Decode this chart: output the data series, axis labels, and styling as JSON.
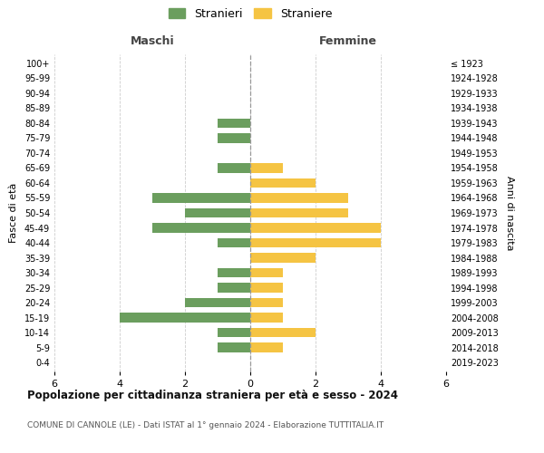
{
  "age_groups": [
    "0-4",
    "5-9",
    "10-14",
    "15-19",
    "20-24",
    "25-29",
    "30-34",
    "35-39",
    "40-44",
    "45-49",
    "50-54",
    "55-59",
    "60-64",
    "65-69",
    "70-74",
    "75-79",
    "80-84",
    "85-89",
    "90-94",
    "95-99",
    "100+"
  ],
  "birth_years": [
    "2019-2023",
    "2014-2018",
    "2009-2013",
    "2004-2008",
    "1999-2003",
    "1994-1998",
    "1989-1993",
    "1984-1988",
    "1979-1983",
    "1974-1978",
    "1969-1973",
    "1964-1968",
    "1959-1963",
    "1954-1958",
    "1949-1953",
    "1944-1948",
    "1939-1943",
    "1934-1938",
    "1929-1933",
    "1924-1928",
    "≤ 1923"
  ],
  "males": [
    0,
    1,
    1,
    4,
    2,
    1,
    1,
    0,
    1,
    3,
    2,
    3,
    0,
    1,
    0,
    1,
    1,
    0,
    0,
    0,
    0
  ],
  "females": [
    0,
    1,
    2,
    1,
    1,
    1,
    1,
    2,
    4,
    4,
    3,
    3,
    2,
    1,
    0,
    0,
    0,
    0,
    0,
    0,
    0
  ],
  "male_color": "#6b9e5e",
  "female_color": "#f5c443",
  "title_main": "Popolazione per cittadinanza straniera per età e sesso - 2024",
  "title_sub": "COMUNE DI CANNOLE (LE) - Dati ISTAT al 1° gennaio 2024 - Elaborazione TUTTITALIA.IT",
  "legend_male": "Stranieri",
  "legend_female": "Straniere",
  "xlabel_left": "Maschi",
  "xlabel_right": "Femmine",
  "ylabel_left": "Fasce di età",
  "ylabel_right": "Anni di nascita",
  "xlim": 6,
  "background_color": "#ffffff",
  "grid_color": "#cccccc"
}
